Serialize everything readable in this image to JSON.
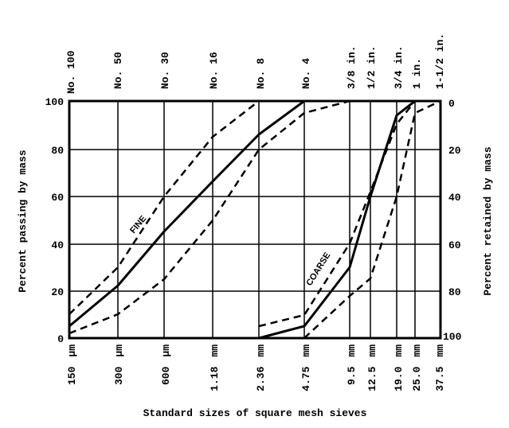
{
  "chart_data": {
    "type": "line",
    "title": "",
    "xlabel": "Standard sizes of square mesh sieves",
    "ylabel": "Percent passing by mass",
    "ylabel_right": "Percent retained by mass",
    "x_scale": "log (sieve sizes)",
    "ylim": [
      0,
      100
    ],
    "grid": true,
    "legend": "none (inline curve labels)",
    "x_ticks_bottom": [
      {
        "size": "150",
        "unit": "µm"
      },
      {
        "size": "300",
        "unit": "µm"
      },
      {
        "size": "600",
        "unit": "µm"
      },
      {
        "size": "1.18",
        "unit": "mm"
      },
      {
        "size": "2.36",
        "unit": "mm"
      },
      {
        "size": "4.75",
        "unit": "mm"
      },
      {
        "size": "9.5",
        "unit": "mm"
      },
      {
        "size": "12.5",
        "unit": "mm"
      },
      {
        "size": "19.0",
        "unit": "mm"
      },
      {
        "size": "25.0",
        "unit": "mm"
      },
      {
        "size": "37.5",
        "unit": "mm"
      }
    ],
    "x_ticks_top": [
      "No. 100",
      "No. 50",
      "No. 30",
      "No. 16",
      "No. 8",
      "No. 4",
      "3/8 in.",
      "1/2 in.",
      "3/4 in.",
      "1 in.",
      "1-1/2 in."
    ],
    "y_ticks_left": [
      "0",
      "20",
      "40",
      "60",
      "80",
      "100"
    ],
    "y_ticks_right": [
      "100",
      "80",
      "60",
      "40",
      "20",
      "0"
    ],
    "annotations": [
      "FINE",
      "COARSE"
    ],
    "series": [
      {
        "name": "Fine aggregate - typical (solid)",
        "style": "solid",
        "x": [
          "150 µm",
          "300 µm",
          "600 µm",
          "1.18 mm",
          "2.36 mm",
          "4.75 mm"
        ],
        "values": [
          5,
          22,
          45,
          66,
          86,
          100
        ]
      },
      {
        "name": "Fine aggregate - upper limit (dashed)",
        "style": "dashed",
        "x": [
          "150 µm",
          "300 µm",
          "600 µm",
          "1.18 mm",
          "2.36 mm"
        ],
        "values": [
          10,
          30,
          60,
          85,
          100
        ]
      },
      {
        "name": "Fine aggregate - lower limit (dashed)",
        "style": "dashed",
        "x": [
          "150 µm",
          "300 µm",
          "600 µm",
          "1.18 mm",
          "2.36 mm",
          "4.75 mm",
          "9.5 mm"
        ],
        "values": [
          2,
          10,
          25,
          50,
          80,
          95,
          100
        ]
      },
      {
        "name": "Coarse aggregate - typical (solid)",
        "style": "solid",
        "x": [
          "2.36 mm",
          "4.75 mm",
          "9.5 mm",
          "12.5 mm",
          "19.0 mm",
          "25.0 mm"
        ],
        "values": [
          0,
          5,
          30,
          60,
          94,
          100
        ]
      },
      {
        "name": "Coarse aggregate - upper limit (dashed)",
        "style": "dashed",
        "x": [
          "2.36 mm",
          "4.75 mm",
          "9.5 mm",
          "12.5 mm",
          "19.0 mm",
          "25.0 mm"
        ],
        "values": [
          5,
          10,
          40,
          62,
          90,
          100
        ]
      },
      {
        "name": "Coarse aggregate - lower limit (dashed)",
        "style": "dashed",
        "x": [
          "4.75 mm",
          "9.5 mm",
          "12.5 mm",
          "19.0 mm",
          "25.0 mm",
          "37.5 mm"
        ],
        "values": [
          0,
          18,
          25,
          60,
          95,
          100
        ]
      }
    ]
  },
  "labels": {
    "xlabel": "Standard sizes of square mesh sieves",
    "ylabel_left": "Percent passing by mass",
    "ylabel_right": "Percent retained by mass",
    "fine": "FINE",
    "coarse": "COARSE",
    "top": [
      "No. 100",
      "No. 50",
      "No. 30",
      "No. 16",
      "No. 8",
      "No. 4",
      "3/8 in.",
      "1/2 in.",
      "3/4 in.",
      "1 in.",
      "1-1/2 in."
    ],
    "bottom_size": [
      "150",
      "300",
      "600",
      "1.18",
      "2.36",
      "4.75",
      "9.5",
      "12.5",
      "19.0",
      "25.0",
      "37.5"
    ],
    "bottom_unit": [
      "µm",
      "µm",
      "µm",
      "mm",
      "mm",
      "mm",
      "mm",
      "mm",
      "mm",
      "mm",
      "mm"
    ],
    "left": [
      "100",
      "80",
      "60",
      "40",
      "20",
      "0"
    ],
    "right": [
      "0",
      "20",
      "40",
      "60",
      "80",
      "100"
    ]
  }
}
